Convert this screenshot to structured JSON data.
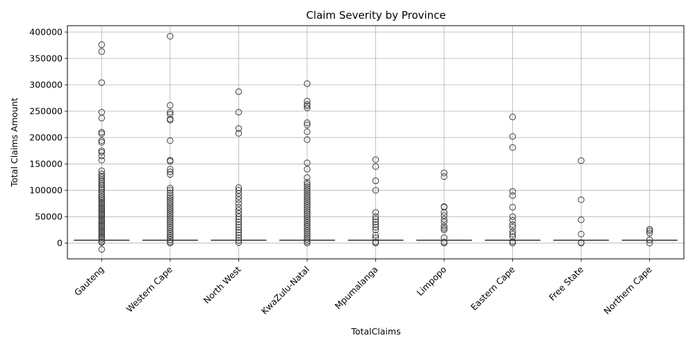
{
  "chart_data": {
    "type": "box",
    "title": "Claim Severity by Province",
    "xlabel": "TotalClaims",
    "ylabel": "Total Claims Amount",
    "ylim": [
      -30000,
      412000
    ],
    "yticks": [
      0,
      50000,
      100000,
      150000,
      200000,
      250000,
      300000,
      350000,
      400000
    ],
    "ytick_labels": [
      "0",
      "50000",
      "100000",
      "150000",
      "200000",
      "250000",
      "300000",
      "350000",
      "400000"
    ],
    "grid": true,
    "categories": [
      "Gauteng",
      "Western Cape",
      "North West",
      "KwaZulu-Natal",
      "Mpumalanga",
      "Limpopo",
      "Eastern Cape",
      "Free State",
      "Northern Cape"
    ],
    "box_color": "#4c4c4c",
    "boxes": [
      {
        "province": "Gauteng",
        "q1": 5500,
        "median": 5500,
        "q3": 5500,
        "outliers": [
          376000,
          363000,
          304000,
          248000,
          237000,
          210000,
          207000,
          194000,
          191000,
          175000,
          172000,
          165000,
          157000,
          137000,
          131000,
          127000,
          124000,
          120000,
          117000,
          113000,
          110000,
          106000,
          103000,
          100000,
          96000,
          92000,
          88000,
          85000,
          82000,
          79000,
          76000,
          73000,
          70000,
          67000,
          64000,
          61000,
          58000,
          55000,
          52000,
          49000,
          46000,
          43000,
          40000,
          37000,
          34000,
          31000,
          28000,
          25000,
          22000,
          19000,
          16000,
          13000,
          10000,
          7000,
          3000,
          1000,
          -12000
        ]
      },
      {
        "province": "Western Cape",
        "q1": 5500,
        "median": 5500,
        "q3": 5500,
        "outliers": [
          392000,
          261000,
          248000,
          244000,
          235000,
          233000,
          194000,
          157000,
          155000,
          140000,
          135000,
          130000,
          104000,
          100000,
          95000,
          90000,
          86000,
          82000,
          78000,
          74000,
          70000,
          66000,
          62000,
          58000,
          54000,
          50000,
          46000,
          42000,
          38000,
          34000,
          30000,
          26000,
          22000,
          18000,
          14000,
          10000,
          6000,
          2000,
          0
        ]
      },
      {
        "province": "North West",
        "q1": 5500,
        "median": 5500,
        "q3": 5500,
        "outliers": [
          287000,
          248000,
          217000,
          208000,
          105000,
          100000,
          94000,
          88000,
          82000,
          75000,
          68000,
          62000,
          56000,
          50000,
          45000,
          40000,
          35000,
          30000,
          25000,
          20000,
          15000,
          10000,
          5000,
          1000
        ]
      },
      {
        "province": "KwaZulu-Natal",
        "q1": 5500,
        "median": 5500,
        "q3": 5500,
        "outliers": [
          302000,
          269000,
          263000,
          260000,
          256000,
          228000,
          224000,
          211000,
          196000,
          152000,
          140000,
          124000,
          115000,
          111000,
          107000,
          103000,
          99000,
          95000,
          91000,
          87000,
          83000,
          79000,
          75000,
          71000,
          67000,
          63000,
          59000,
          55000,
          51000,
          47000,
          43000,
          39000,
          35000,
          31000,
          27000,
          23000,
          19000,
          15000,
          11000,
          7000,
          3000,
          0
        ]
      },
      {
        "province": "Mpumalanga",
        "q1": 5500,
        "median": 5500,
        "q3": 5500,
        "outliers": [
          158000,
          145000,
          118000,
          100000,
          58000,
          50000,
          45000,
          40000,
          35000,
          30000,
          25000,
          15000,
          10000,
          2000,
          0
        ]
      },
      {
        "province": "Limpopo",
        "q1": 5500,
        "median": 5500,
        "q3": 5500,
        "outliers": [
          133000,
          126000,
          69000,
          68000,
          58000,
          52000,
          45000,
          40000,
          32000,
          28000,
          25000,
          10000,
          2000,
          0
        ]
      },
      {
        "province": "Eastern Cape",
        "q1": 5500,
        "median": 5500,
        "q3": 5500,
        "outliers": [
          239000,
          202000,
          181000,
          98000,
          90000,
          68000,
          50000,
          43000,
          35000,
          30000,
          22000,
          17000,
          12000,
          3000,
          0
        ]
      },
      {
        "province": "Free State",
        "q1": 5500,
        "median": 5500,
        "q3": 5500,
        "outliers": [
          156000,
          82000,
          44000,
          17000,
          1000,
          0
        ]
      },
      {
        "province": "Northern Cape",
        "q1": 5500,
        "median": 5500,
        "q3": 5500,
        "outliers": [
          26000,
          23000,
          19000,
          6000,
          0
        ]
      }
    ]
  }
}
